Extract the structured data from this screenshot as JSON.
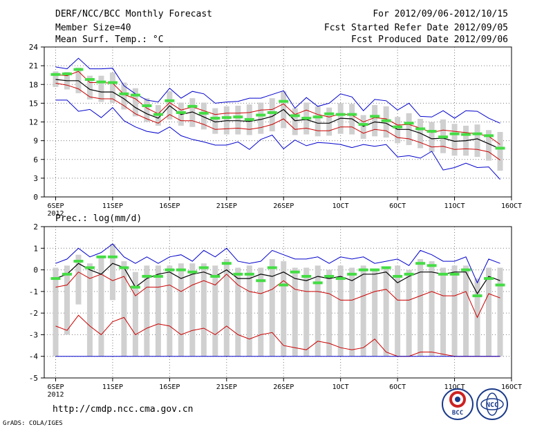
{
  "header": {
    "title": "DERF/NCC/BCC Monthly Forecast",
    "member_size": "Member Size=40",
    "variable": "Mean Surf. Temp.: °C",
    "period": "For 2012/09/06-2012/10/15",
    "started": "Fcst Started Refer Date 2012/09/05",
    "produced": "Fcst Produced Date 2012/09/06"
  },
  "footer": {
    "url": "http://cmdp.ncc.cma.gov.cn",
    "grads": "GrADS: COLA/IGES",
    "logo_bcc": "BCC",
    "logo_ncc": "NCC"
  },
  "x_axis": {
    "ticks": [
      {
        "day": 1,
        "label": "6SEP",
        "sub": "2012"
      },
      {
        "day": 6,
        "label": "11SEP"
      },
      {
        "day": 11,
        "label": "16SEP"
      },
      {
        "day": 16,
        "label": "21SEP"
      },
      {
        "day": 21,
        "label": "26SEP"
      },
      {
        "day": 26,
        "label": "1OCT"
      },
      {
        "day": 31,
        "label": "6OCT"
      },
      {
        "day": 36,
        "label": "11OCT"
      },
      {
        "day": 41,
        "label": "16OCT"
      }
    ],
    "range": [
      0,
      41
    ]
  },
  "chart_data": [
    {
      "type": "line",
      "title": "Mean Surf. Temp.: °C",
      "ylim": [
        0,
        24
      ],
      "yticks": [
        0,
        3,
        6,
        9,
        12,
        15,
        18,
        21,
        24
      ],
      "x": [
        1,
        2,
        3,
        4,
        5,
        6,
        7,
        8,
        9,
        10,
        11,
        12,
        13,
        14,
        15,
        16,
        17,
        18,
        19,
        20,
        21,
        22,
        23,
        24,
        25,
        26,
        27,
        28,
        29,
        30,
        31,
        32,
        33,
        34,
        35,
        36,
        37,
        38,
        39,
        40
      ],
      "series": [
        {
          "name": "max",
          "color": "#0000cc",
          "values": [
            20.8,
            20.5,
            22.2,
            20.5,
            20.5,
            20.6,
            17.8,
            16.5,
            15.5,
            15.2,
            17.4,
            15.8,
            16.9,
            16.5,
            15.0,
            15.2,
            15.3,
            15.8,
            15.8,
            16.4,
            17.0,
            14.2,
            15.9,
            14.5,
            15.0,
            16.5,
            16.0,
            13.8,
            15.6,
            15.4,
            13.9,
            15.0,
            12.9,
            12.8,
            13.8,
            12.6,
            13.8,
            13.7,
            12.6,
            11.8
          ]
        },
        {
          "name": "upper",
          "color": "#cc0000",
          "values": [
            19.6,
            19.4,
            20.1,
            18.3,
            18.3,
            18.2,
            16.4,
            15.7,
            14.2,
            13.3,
            15.1,
            13.9,
            14.4,
            13.8,
            13.2,
            13.4,
            13.4,
            13.5,
            13.9,
            14.0,
            14.9,
            13.2,
            13.9,
            13.2,
            12.8,
            13.3,
            13.1,
            12.0,
            12.7,
            12.5,
            11.5,
            11.6,
            11.0,
            10.3,
            10.7,
            10.5,
            10.3,
            10.1,
            9.7,
            8.4
          ]
        },
        {
          "name": "mean",
          "color": "#000000",
          "values": [
            18.8,
            18.6,
            18.6,
            17.2,
            16.8,
            16.8,
            15.7,
            14.3,
            13.3,
            12.6,
            14.6,
            13.2,
            13.6,
            12.8,
            12.0,
            12.2,
            12.2,
            12.1,
            12.4,
            12.9,
            14.0,
            12.2,
            12.4,
            11.8,
            11.8,
            12.6,
            12.5,
            11.3,
            12.0,
            11.8,
            10.8,
            10.8,
            10.2,
            9.3,
            9.4,
            8.9,
            9.0,
            9.3,
            8.5,
            7.7
          ]
        },
        {
          "name": "lower",
          "color": "#cc0000",
          "values": [
            18.2,
            17.9,
            17.3,
            16.0,
            15.7,
            15.7,
            14.6,
            13.3,
            12.5,
            11.8,
            13.2,
            12.2,
            12.2,
            11.6,
            10.8,
            10.9,
            11.0,
            10.8,
            11.1,
            11.6,
            12.5,
            10.8,
            11.0,
            10.6,
            10.6,
            11.2,
            11.2,
            10.2,
            10.8,
            10.6,
            9.5,
            9.3,
            8.7,
            8.0,
            8.1,
            7.6,
            7.7,
            7.6,
            7.2,
            5.9
          ]
        },
        {
          "name": "min",
          "color": "#0000cc",
          "values": [
            15.5,
            15.5,
            13.7,
            14.0,
            12.7,
            14.3,
            12.2,
            11.2,
            10.5,
            10.2,
            11.2,
            9.8,
            9.2,
            8.8,
            8.3,
            8.3,
            8.8,
            7.6,
            9.2,
            9.9,
            7.7,
            9.1,
            8.2,
            8.7,
            8.6,
            8.4,
            7.9,
            8.4,
            8.1,
            8.4,
            6.4,
            6.6,
            6.2,
            7.3,
            4.3,
            4.7,
            5.4,
            4.7,
            4.8,
            2.8
          ]
        },
        {
          "name": "obs",
          "color": "#44dd44",
          "values": [
            19.6,
            19.7,
            20.4,
            18.8,
            18.4,
            18.3,
            16.5,
            16.3,
            14.6,
            13.2,
            15.4,
            13.5,
            14.5,
            13.4,
            12.6,
            12.7,
            12.8,
            12.4,
            13.1,
            13.5,
            15.3,
            13.0,
            12.6,
            12.8,
            13.3,
            13.2,
            13.2,
            11.6,
            12.9,
            12.2,
            11.2,
            11.8,
            10.9,
            10.5,
            9.6,
            10.1,
            10.0,
            10.1,
            9.8,
            7.8
          ]
        }
      ],
      "boxes": {
        "lo": [
          17.6,
          17.2,
          16.6,
          15.6,
          15.2,
          15.1,
          14.0,
          12.9,
          12.0,
          11.4,
          12.4,
          11.4,
          11.2,
          10.8,
          10.1,
          10.0,
          10.0,
          9.9,
          10.1,
          10.5,
          11.0,
          9.9,
          10.0,
          9.7,
          9.8,
          10.1,
          10.0,
          9.3,
          9.7,
          9.5,
          8.6,
          8.3,
          7.8,
          7.2,
          7.0,
          6.6,
          6.6,
          6.4,
          5.8,
          4.2
        ],
        "hi": [
          20.1,
          20.0,
          20.7,
          19.4,
          19.4,
          19.9,
          18.3,
          17.4,
          15.8,
          14.7,
          16.9,
          15.1,
          15.8,
          15.1,
          14.2,
          14.5,
          14.6,
          14.8,
          15.1,
          15.8,
          16.9,
          14.2,
          15.1,
          14.5,
          14.3,
          15.0,
          14.9,
          13.1,
          14.7,
          14.5,
          12.8,
          13.4,
          12.5,
          12.0,
          12.4,
          11.7,
          11.4,
          11.6,
          10.7,
          10.4
        ]
      }
    },
    {
      "type": "line",
      "title": "Prec.: log(mm/d)",
      "ylim": [
        -5,
        2
      ],
      "yticks": [
        -5,
        -4,
        -3,
        -2,
        -1,
        0,
        1,
        2
      ],
      "x": [
        1,
        2,
        3,
        4,
        5,
        6,
        7,
        8,
        9,
        10,
        11,
        12,
        13,
        14,
        15,
        16,
        17,
        18,
        19,
        20,
        21,
        22,
        23,
        24,
        25,
        26,
        27,
        28,
        29,
        30,
        31,
        32,
        33,
        34,
        35,
        36,
        37,
        38,
        39,
        40
      ],
      "series": [
        {
          "name": "max",
          "color": "#0000cc",
          "values": [
            0.3,
            0.5,
            1.0,
            0.6,
            0.8,
            1.2,
            0.6,
            0.3,
            0.6,
            0.3,
            0.6,
            0.7,
            0.4,
            0.9,
            0.6,
            1.0,
            0.4,
            0.3,
            0.4,
            0.9,
            0.7,
            0.5,
            0.5,
            0.6,
            0.3,
            0.6,
            0.5,
            0.6,
            0.3,
            0.4,
            0.5,
            0.2,
            0.9,
            0.7,
            0.4,
            0.4,
            0.6,
            -0.6,
            0.5,
            0.3
          ]
        },
        {
          "name": "upper",
          "color": "#cc0000",
          "values": [
            -0.8,
            -0.7,
            -0.1,
            -0.4,
            -0.2,
            -0.5,
            -0.3,
            -1.2,
            -0.8,
            -0.8,
            -0.7,
            -1.0,
            -0.7,
            -0.5,
            -0.7,
            -0.2,
            -0.7,
            -1.0,
            -1.1,
            -0.9,
            -0.5,
            -0.9,
            -1.0,
            -1.0,
            -1.1,
            -1.4,
            -1.4,
            -1.2,
            -1.0,
            -0.9,
            -1.4,
            -1.4,
            -1.2,
            -1.0,
            -1.2,
            -1.2,
            -1.0,
            -2.2,
            -1.1,
            -1.3
          ]
        },
        {
          "name": "mean",
          "color": "#000000",
          "values": [
            -0.4,
            -0.2,
            0.3,
            0.0,
            -0.2,
            0.3,
            0.1,
            -0.8,
            -0.4,
            -0.2,
            -0.1,
            -0.4,
            -0.2,
            -0.1,
            -0.3,
            0.0,
            -0.4,
            -0.4,
            -0.2,
            -0.3,
            -0.1,
            -0.4,
            -0.5,
            -0.3,
            -0.4,
            -0.3,
            -0.5,
            -0.2,
            -0.2,
            -0.1,
            -0.6,
            -0.3,
            -0.1,
            -0.1,
            -0.2,
            -0.1,
            -0.1,
            -1.1,
            -0.3,
            -0.5
          ]
        },
        {
          "name": "lower",
          "color": "#cc0000",
          "values": [
            -2.6,
            -2.8,
            -2.1,
            -2.6,
            -3.0,
            -2.4,
            -2.2,
            -3.0,
            -2.7,
            -2.5,
            -2.6,
            -3.0,
            -2.8,
            -2.7,
            -3.0,
            -2.6,
            -3.0,
            -3.2,
            -3.0,
            -2.9,
            -3.5,
            -3.6,
            -3.7,
            -3.3,
            -3.4,
            -3.6,
            -3.7,
            -3.6,
            -3.2,
            -3.8,
            -4.0,
            -4.0,
            -3.8,
            -3.8,
            -3.9,
            -4.0,
            -4.0,
            -4.0,
            -4.0,
            -4.0
          ]
        },
        {
          "name": "min",
          "color": "#0000cc",
          "values": [
            -4.0,
            -4.0,
            -4.0,
            -4.0,
            -4.0,
            -4.0,
            -4.0,
            -4.0,
            -4.0,
            -4.0,
            -4.0,
            -4.0,
            -4.0,
            -4.0,
            -4.0,
            -4.0,
            -4.0,
            -4.0,
            -4.0,
            -4.0,
            -4.0,
            -4.0,
            -4.0,
            -4.0,
            -4.0,
            -4.0,
            -4.0,
            -4.0,
            -4.0,
            -4.0,
            -4.0,
            -4.0,
            -4.0,
            -4.0,
            -4.0,
            -4.0,
            -4.0,
            -4.0,
            -4.0,
            -4.0
          ]
        },
        {
          "name": "obs",
          "color": "#44dd44",
          "values": [
            -0.4,
            -0.2,
            0.4,
            0.1,
            0.6,
            0.6,
            0.1,
            -0.8,
            -0.3,
            -0.3,
            0.0,
            0.0,
            -0.1,
            0.1,
            -0.3,
            0.3,
            -0.2,
            -0.2,
            -0.5,
            0.1,
            -0.7,
            -0.1,
            -0.3,
            -0.6,
            -0.3,
            -0.4,
            -0.2,
            0.0,
            0.0,
            0.1,
            -0.3,
            -0.2,
            0.3,
            0.2,
            -0.2,
            -0.2,
            0.0,
            -1.2,
            -0.4,
            -0.7
          ]
        }
      ],
      "boxes": {
        "lo": [
          -4.0,
          -3.0,
          -1.6,
          -4.0,
          -4.0,
          -1.4,
          -4.0,
          -4.0,
          -4.0,
          -4.0,
          -4.0,
          -4.0,
          -4.0,
          -4.0,
          -4.0,
          -4.0,
          -4.0,
          -4.0,
          -4.0,
          -4.0,
          -4.0,
          -4.0,
          -4.0,
          -4.0,
          -4.0,
          -4.0,
          -4.0,
          -4.0,
          -4.0,
          -4.0,
          -4.0,
          -4.0,
          -4.0,
          -4.0,
          -4.0,
          -4.0,
          -4.0,
          -4.0,
          -4.0,
          -4.0
        ],
        "hi": [
          0.1,
          0.2,
          0.7,
          0.3,
          0.6,
          1.2,
          0.4,
          -0.1,
          0.2,
          0.2,
          0.2,
          0.3,
          0.3,
          0.3,
          0.2,
          0.5,
          0.1,
          0.2,
          0.1,
          0.5,
          0.4,
          0.1,
          0.1,
          0.2,
          0.0,
          0.2,
          0.1,
          0.2,
          0.0,
          0.1,
          0.2,
          0.0,
          0.5,
          0.4,
          0.1,
          0.2,
          0.2,
          -0.4,
          0.1,
          0.1
        ]
      }
    }
  ]
}
